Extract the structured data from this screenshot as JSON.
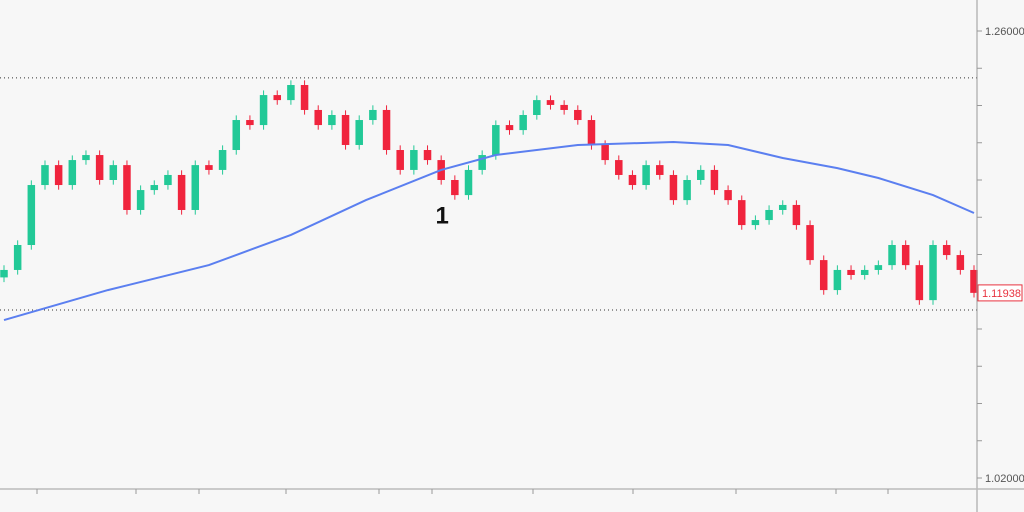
{
  "chart_data": {
    "type": "candlestick",
    "title": "",
    "xlabel": "",
    "ylabel": "",
    "ylim": [
      1.0075,
      1.2767
    ],
    "y_ticks": [
      1.02,
      1.04,
      1.06,
      1.08,
      1.1,
      1.12,
      1.14,
      1.16,
      1.18,
      1.2,
      1.22,
      1.24,
      1.26
    ],
    "y_tick_labels": [
      {
        "value": 1.26,
        "label": "1.26000"
      },
      {
        "value": 1.02,
        "label": "1.02000"
      }
    ],
    "x_tick_count": 11,
    "grid": false,
    "colors": {
      "up": "#22c997",
      "down": "#f0243d",
      "ma": "#5b7ff0",
      "levels": "#333333",
      "price_tag": "#e8323f"
    },
    "closes": [
      1.1317,
      1.1451,
      1.1773,
      1.188,
      1.1773,
      1.1907,
      1.1934,
      1.18,
      1.188,
      1.1639,
      1.1746,
      1.1773,
      1.1827,
      1.1639,
      1.188,
      1.1854,
      1.1961,
      1.2122,
      1.2095,
      1.2256,
      1.2229,
      1.231,
      1.2176,
      1.2095,
      1.2149,
      1.1988,
      1.2122,
      1.2176,
      1.1961,
      1.1854,
      1.1961,
      1.1907,
      1.18,
      1.1719,
      1.1854,
      1.1934,
      1.2095,
      1.2068,
      1.2149,
      1.2229,
      1.2203,
      1.2176,
      1.2122,
      1.1988,
      1.1907,
      1.1827,
      1.1773,
      1.188,
      1.1827,
      1.1692,
      1.18,
      1.1854,
      1.1746,
      1.1692,
      1.1558,
      1.1585,
      1.1639,
      1.1666,
      1.1558,
      1.137,
      1.1209,
      1.1317,
      1.129,
      1.1317,
      1.1343,
      1.1451,
      1.1343,
      1.1155,
      1.1451,
      1.1397,
      1.1317,
      1.1194
    ],
    "moving_average": {
      "index": [
        0,
        7.6,
        15,
        21,
        26.5,
        32,
        36,
        42,
        49,
        53,
        57,
        61,
        64,
        68,
        71
      ],
      "values": [
        1.1048,
        1.1209,
        1.1343,
        1.1505,
        1.1692,
        1.1854,
        1.1934,
        1.1988,
        1.2004,
        1.1988,
        1.1918,
        1.1864,
        1.1811,
        1.1719,
        1.1623
      ]
    },
    "horizontal_levels": [
      1.2348,
      1.1102
    ],
    "last_price": 1.11938,
    "last_price_label": "1.11938",
    "annotations": [
      {
        "text": "1",
        "index": 32,
        "price": 1.161
      }
    ]
  }
}
